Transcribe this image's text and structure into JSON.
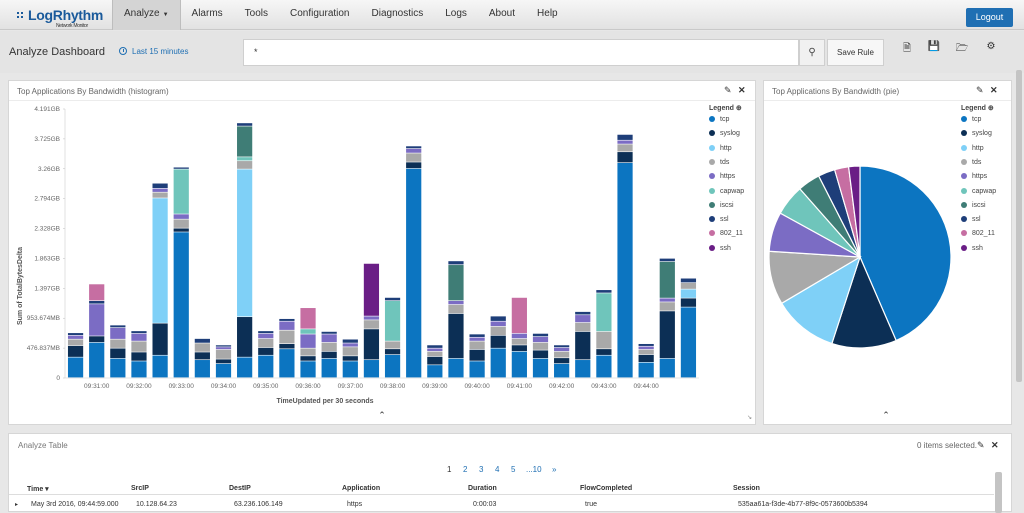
{
  "app": {
    "logo": "LogRhythm",
    "logo_sub": "Network Monitor",
    "nav": [
      "Analyze",
      "Alarms",
      "Tools",
      "Configuration",
      "Diagnostics",
      "Logs",
      "About",
      "Help"
    ],
    "logout": "Logout"
  },
  "toolbar": {
    "title": "Analyze Dashboard",
    "time_range": "Last 15 minutes",
    "search_value": "*",
    "save_rule": "Save Rule",
    "icons": [
      "search-icon",
      "new-document-icon",
      "save-icon",
      "open-folder-icon",
      "gear-icon"
    ]
  },
  "histogram_panel": {
    "title": "Top Applications By Bandwidth (histogram)",
    "legend_title": "Legend"
  },
  "pie_panel": {
    "title": "Top Applications By Bandwidth (pie)",
    "legend_title": "Legend"
  },
  "colors": {
    "tcp": "#0c75c1",
    "syslog": "#0c2f55",
    "http": "#7fd0f7",
    "tds": "#a9a9a9",
    "https": "#7b6cc4",
    "capwap": "#6fc5bb",
    "iscsi": "#3f7d76",
    "ssl": "#1e3e79",
    "802_11": "#c66ea2",
    "ssh": "#6a1e86",
    "accent": "#1f6fb3"
  },
  "chart_data": [
    {
      "type": "bar",
      "stacked": true,
      "xlabel": "TimeUpdated per 30 seconds",
      "ylabel": "Sum of TotalBytesDelta",
      "yticks": [
        "0",
        "476.837MB",
        "953.674MB",
        "1.397GB",
        "1.863GB",
        "2.328GB",
        "2.794GB",
        "3.26GB",
        "3.725GB",
        "4.191GB"
      ],
      "ylim": [
        0,
        4.191
      ],
      "yunit": "GB",
      "xticks": [
        "09:31:00",
        "09:32:00",
        "09:33:00",
        "09:34:00",
        "09:35:00",
        "09:36:00",
        "09:37:00",
        "09:38:00",
        "09:39:00",
        "09:40:00",
        "09:41:00",
        "09:42:00",
        "09:43:00",
        "09:44:00"
      ],
      "legend": [
        "tcp",
        "syslog",
        "http",
        "tds",
        "https",
        "capwap",
        "iscsi",
        "ssl",
        "802_11",
        "ssh"
      ],
      "legend_position": "right",
      "bars": [
        {
          "tcp": 0.32,
          "syslog": 0.18,
          "tds": 0.1,
          "https": 0.06,
          "ssl": 0.04
        },
        {
          "tcp": 0.55,
          "syslog": 0.1,
          "https": 0.5,
          "ssl": 0.05,
          "802_11": 0.26
        },
        {
          "tcp": 0.3,
          "syslog": 0.16,
          "tds": 0.14,
          "https": 0.18,
          "ssl": 0.04
        },
        {
          "tcp": 0.26,
          "syslog": 0.14,
          "tds": 0.17,
          "https": 0.12,
          "ssl": 0.04
        },
        {
          "tcp": 0.35,
          "syslog": 0.5,
          "http": 1.95,
          "tds": 0.09,
          "https": 0.06,
          "ssl": 0.08
        },
        {
          "tcp": 2.27,
          "syslog": 0.06,
          "tds": 0.14,
          "https": 0.08,
          "capwap": 0.7,
          "ssl": 0.03
        },
        {
          "tcp": 0.28,
          "syslog": 0.12,
          "tds": 0.14,
          "ssl": 0.07
        },
        {
          "tcp": 0.22,
          "syslog": 0.07,
          "tds": 0.15,
          "https": 0.04,
          "ssl": 0.03
        },
        {
          "tcp": 0.32,
          "syslog": 0.63,
          "http": 2.3,
          "tds": 0.13,
          "capwap": 0.06,
          "iscsi": 0.48,
          "ssl": 0.05
        },
        {
          "tcp": 0.35,
          "syslog": 0.12,
          "tds": 0.14,
          "https": 0.08,
          "ssl": 0.04
        },
        {
          "tcp": 0.45,
          "syslog": 0.08,
          "tds": 0.21,
          "https": 0.14,
          "ssl": 0.04
        },
        {
          "tcp": 0.26,
          "syslog": 0.08,
          "capwap": 0.08,
          "tds": 0.12,
          "https": 0.22,
          "802_11": 0.33
        },
        {
          "tcp": 0.3,
          "syslog": 0.11,
          "tds": 0.14,
          "https": 0.13,
          "ssl": 0.04
        },
        {
          "tcp": 0.26,
          "syslog": 0.08,
          "tds": 0.14,
          "https": 0.06,
          "ssl": 0.06
        },
        {
          "tcp": 0.28,
          "syslog": 0.48,
          "tds": 0.14,
          "https": 0.06,
          "ssh": 0.82
        },
        {
          "tcp": 0.36,
          "syslog": 0.09,
          "tds": 0.12,
          "capwap": 0.63,
          "ssl": 0.05
        },
        {
          "tcp": 3.26,
          "syslog": 0.1,
          "tds": 0.14,
          "https": 0.07,
          "ssl": 0.04
        },
        {
          "tcp": 0.2,
          "syslog": 0.13,
          "tds": 0.08,
          "https": 0.05,
          "ssl": 0.05
        },
        {
          "tcp": 0.3,
          "syslog": 0.7,
          "tds": 0.14,
          "https": 0.06,
          "iscsi": 0.56,
          "ssl": 0.06
        },
        {
          "tcp": 0.26,
          "syslog": 0.18,
          "tds": 0.13,
          "https": 0.06,
          "ssl": 0.05
        },
        {
          "tcp": 0.46,
          "syslog": 0.2,
          "tds": 0.14,
          "https": 0.08,
          "ssl": 0.08
        },
        {
          "tcp": 0.41,
          "syslog": 0.1,
          "tds": 0.1,
          "https": 0.08,
          "802_11": 0.56
        },
        {
          "tcp": 0.3,
          "syslog": 0.13,
          "tds": 0.12,
          "https": 0.09,
          "ssl": 0.05
        },
        {
          "tcp": 0.22,
          "syslog": 0.09,
          "tds": 0.1,
          "https": 0.06,
          "ssl": 0.04
        },
        {
          "tcp": 0.28,
          "syslog": 0.44,
          "tds": 0.14,
          "https": 0.12,
          "ssl": 0.05
        },
        {
          "tcp": 0.35,
          "syslog": 0.1,
          "tds": 0.27,
          "capwap": 0.6,
          "ssl": 0.05
        },
        {
          "tcp": 3.35,
          "syslog": 0.17,
          "tds": 0.12,
          "https": 0.06,
          "ssl": 0.09
        },
        {
          "tcp": 0.24,
          "syslog": 0.12,
          "tds": 0.08,
          "https": 0.05,
          "ssl": 0.04
        },
        {
          "tcp": 0.3,
          "syslog": 0.74,
          "tds": 0.14,
          "https": 0.06,
          "iscsi": 0.57,
          "ssl": 0.05
        },
        {
          "tcp": 1.1,
          "syslog": 0.14,
          "http": 0.14,
          "tds": 0.1,
          "ssl": 0.07
        }
      ]
    },
    {
      "type": "pie",
      "legend": [
        "tcp",
        "syslog",
        "http",
        "tds",
        "https",
        "capwap",
        "iscsi",
        "ssl",
        "802_11",
        "ssh"
      ],
      "legend_position": "right",
      "values": [
        43.5,
        11.5,
        11.5,
        9.5,
        7.0,
        5.5,
        4.0,
        3.0,
        2.5,
        2.0
      ]
    }
  ],
  "table": {
    "title": "Analyze Table",
    "selected": "0 items selected.",
    "pages": [
      "1",
      "2",
      "3",
      "4",
      "5",
      "...10",
      "»"
    ],
    "columns": [
      "Time",
      "SrcIP",
      "DestIP",
      "Application",
      "Duration",
      "FlowCompleted",
      "Session"
    ],
    "rows": [
      [
        "May 3rd 2016, 09:44:59.000",
        "10.128.64.23",
        "63.236.106.149",
        "https",
        "0:00:03",
        "true",
        "535aa61a-f3de-4b77-8f9c-0573600b5394"
      ]
    ]
  }
}
